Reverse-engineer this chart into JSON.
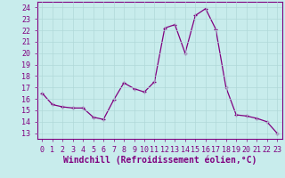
{
  "x": [
    0,
    1,
    2,
    3,
    4,
    5,
    6,
    7,
    8,
    9,
    10,
    11,
    12,
    13,
    14,
    15,
    16,
    17,
    18,
    19,
    20,
    21,
    22,
    23
  ],
  "y": [
    16.5,
    15.5,
    15.3,
    15.2,
    15.2,
    14.4,
    14.2,
    15.9,
    17.4,
    16.9,
    16.6,
    17.5,
    22.2,
    22.5,
    20.0,
    23.3,
    23.9,
    22.1,
    17.0,
    14.6,
    14.5,
    14.3,
    14.0,
    13.0
  ],
  "line_color": "#800080",
  "marker": "+",
  "bg_color": "#c8ecec",
  "grid_color": "#b0d8d8",
  "xlabel": "Windchill (Refroidissement éolien,°C)",
  "ylabel_ticks": [
    13,
    14,
    15,
    16,
    17,
    18,
    19,
    20,
    21,
    22,
    23,
    24
  ],
  "xticks": [
    0,
    1,
    2,
    3,
    4,
    5,
    6,
    7,
    8,
    9,
    10,
    11,
    12,
    13,
    14,
    15,
    16,
    17,
    18,
    19,
    20,
    21,
    22,
    23
  ],
  "ylim": [
    12.5,
    24.5
  ],
  "xlim": [
    -0.5,
    23.5
  ],
  "label_color": "#800080",
  "tick_color": "#800080",
  "spine_color": "#800080",
  "font_size": 6,
  "xlabel_fontsize": 7
}
